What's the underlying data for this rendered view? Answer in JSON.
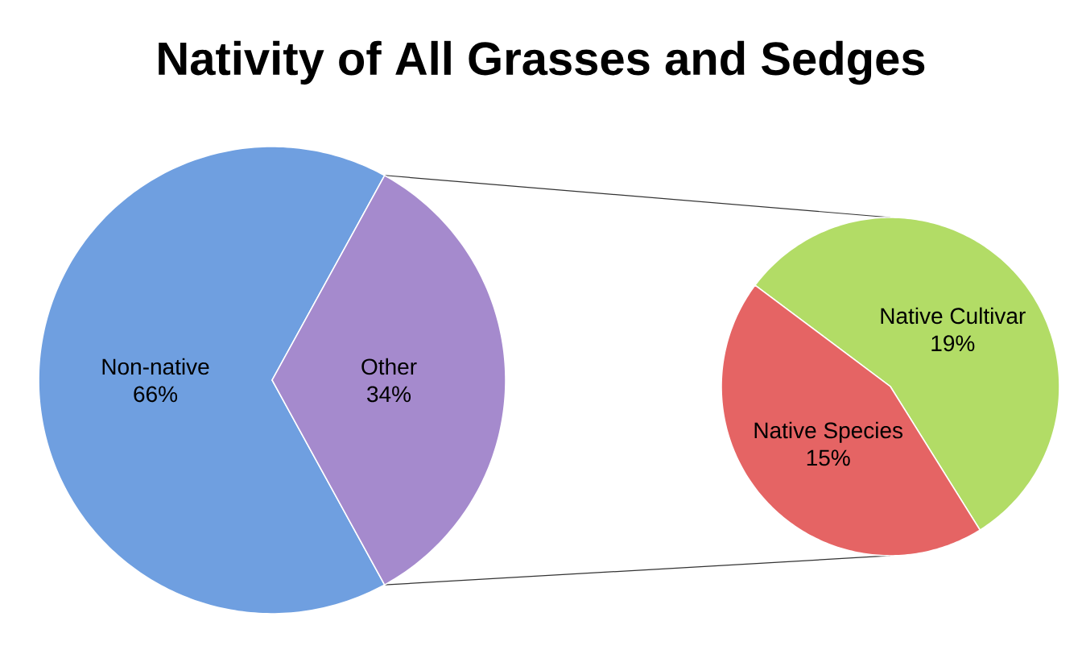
{
  "chart_data": [
    {
      "type": "pie",
      "title": "Nativity of All Grasses and Sedges",
      "categories": [
        "Non-native",
        "Other"
      ],
      "values": [
        66,
        34
      ],
      "colors": [
        "#6f9fe0",
        "#a58acd"
      ],
      "value_labels": [
        "66%",
        "34%"
      ]
    },
    {
      "type": "pie",
      "categories": [
        "Native Cultivar",
        "Native Species"
      ],
      "values": [
        19,
        15
      ],
      "colors": [
        "#b2dc66",
        "#e56464"
      ],
      "value_labels": [
        "19%",
        "15%"
      ]
    }
  ]
}
